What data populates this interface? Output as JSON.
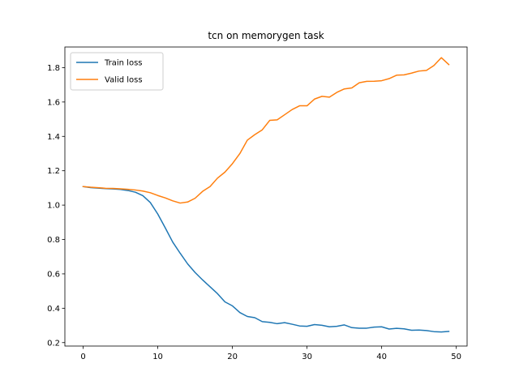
{
  "chart_data": {
    "type": "line",
    "title": "tcn on memorygen task",
    "xlabel": "",
    "ylabel": "",
    "xlim": [
      -2.45,
      51.45
    ],
    "ylim": [
      0.18,
      1.92
    ],
    "xticks": [
      0,
      10,
      20,
      30,
      40,
      50
    ],
    "yticks": [
      0.2,
      0.4,
      0.6,
      0.8,
      1.0,
      1.2,
      1.4,
      1.6,
      1.8
    ],
    "ytick_labels": [
      "0.2",
      "0.4",
      "0.6",
      "0.8",
      "1.0",
      "1.2",
      "1.4",
      "1.6",
      "1.8"
    ],
    "grid": false,
    "legend_position": "top-left",
    "x": [
      0,
      1,
      2,
      3,
      4,
      5,
      6,
      7,
      8,
      9,
      10,
      11,
      12,
      13,
      14,
      15,
      16,
      17,
      18,
      19,
      20,
      21,
      22,
      23,
      24,
      25,
      26,
      27,
      28,
      29,
      30,
      31,
      32,
      33,
      34,
      35,
      36,
      37,
      38,
      39,
      40,
      41,
      42,
      43,
      44,
      45,
      46,
      47,
      48,
      49
    ],
    "series": [
      {
        "name": "Train loss",
        "color": "#1f77b4",
        "values": [
          1.108,
          1.102,
          1.099,
          1.096,
          1.094,
          1.091,
          1.085,
          1.075,
          1.055,
          1.015,
          0.948,
          0.868,
          0.785,
          0.72,
          0.658,
          0.608,
          0.565,
          0.525,
          0.485,
          0.437,
          0.414,
          0.375,
          0.352,
          0.345,
          0.322,
          0.318,
          0.31,
          0.316,
          0.307,
          0.297,
          0.295,
          0.305,
          0.301,
          0.292,
          0.295,
          0.303,
          0.287,
          0.284,
          0.284,
          0.29,
          0.292,
          0.279,
          0.283,
          0.28,
          0.272,
          0.273,
          0.27,
          0.264,
          0.262,
          0.265
        ]
      },
      {
        "name": "Valid loss",
        "color": "#ff7f0e",
        "values": [
          1.108,
          1.104,
          1.101,
          1.098,
          1.097,
          1.095,
          1.092,
          1.088,
          1.082,
          1.072,
          1.056,
          1.042,
          1.025,
          1.012,
          1.018,
          1.04,
          1.08,
          1.108,
          1.157,
          1.192,
          1.241,
          1.3,
          1.378,
          1.41,
          1.438,
          1.493,
          1.496,
          1.526,
          1.556,
          1.578,
          1.578,
          1.617,
          1.633,
          1.628,
          1.656,
          1.676,
          1.682,
          1.712,
          1.72,
          1.721,
          1.724,
          1.736,
          1.756,
          1.758,
          1.768,
          1.78,
          1.784,
          1.812,
          1.858,
          1.818
        ]
      }
    ]
  }
}
